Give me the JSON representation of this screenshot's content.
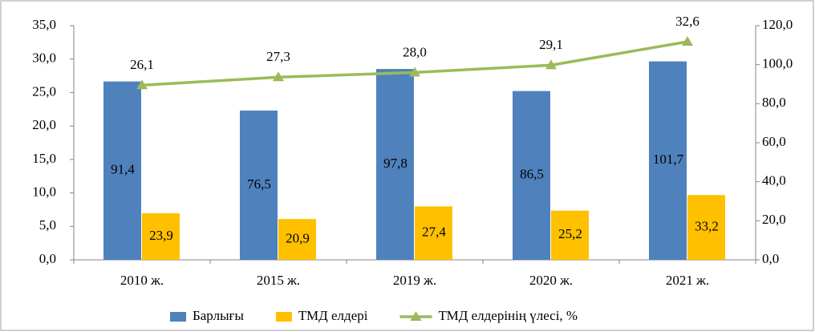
{
  "chart_data": {
    "type": "bar",
    "categories": [
      "2010 ж.",
      "2015 ж.",
      "2019 ж.",
      "2020 ж.",
      "2021 ж."
    ],
    "series": [
      {
        "name": "Барлығы",
        "type": "bar",
        "axis": "y2",
        "color": "#4f81bd",
        "values": [
          91.4,
          76.5,
          97.8,
          86.5,
          101.7
        ],
        "value_labels": [
          "91,4",
          "76,5",
          "97,8",
          "86,5",
          "101,7"
        ]
      },
      {
        "name": "ТМД елдері",
        "type": "bar",
        "axis": "y2",
        "color": "#ffc000",
        "values": [
          23.9,
          20.9,
          27.4,
          25.2,
          33.2
        ],
        "value_labels": [
          "23,9",
          "20,9",
          "27,4",
          "25,2",
          "33,2"
        ]
      },
      {
        "name": "ТМД елдерінің үлесі, %",
        "type": "line",
        "axis": "y",
        "color": "#9bbb59",
        "values": [
          26.1,
          27.3,
          28.0,
          29.1,
          32.6
        ],
        "value_labels": [
          "26,1",
          "27,3",
          "28,0",
          "29,1",
          "32,6"
        ]
      }
    ],
    "ylim": [
      0,
      35
    ],
    "yticks": [
      {
        "value": 0,
        "label": "0,0"
      },
      {
        "value": 5,
        "label": "5,0"
      },
      {
        "value": 10,
        "label": "10,0"
      },
      {
        "value": 15,
        "label": "15,0"
      },
      {
        "value": 20,
        "label": "20,0"
      },
      {
        "value": 25,
        "label": "25,0"
      },
      {
        "value": 30,
        "label": "30,0"
      },
      {
        "value": 35,
        "label": "35,0"
      }
    ],
    "y2lim": [
      0,
      120
    ],
    "y2ticks": [
      {
        "value": 0,
        "label": "0,0"
      },
      {
        "value": 20,
        "label": "20,0"
      },
      {
        "value": 40,
        "label": "40,0"
      },
      {
        "value": 60,
        "label": "60,0"
      },
      {
        "value": 80,
        "label": "80,0"
      },
      {
        "value": 100,
        "label": "100,0"
      },
      {
        "value": 120,
        "label": "120,0"
      }
    ],
    "legend": "bottom"
  }
}
